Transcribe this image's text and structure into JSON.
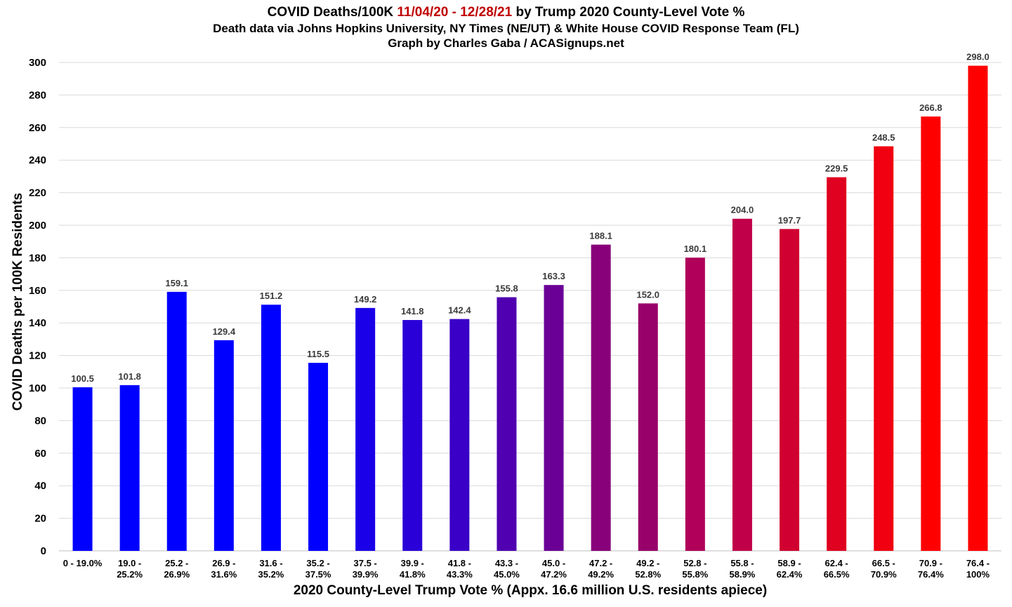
{
  "title": {
    "line1_prefix": "COVID Deaths/100K ",
    "line1_dates": "11/04/20 - 12/28/21",
    "line1_suffix": " by Trump 2020 County-Level Vote %",
    "line2": "Death data via Johns Hopkins University, NY Times (NE/UT) & White House COVID Response Team (FL)",
    "line3": "Graph by Charles Gaba / ACASignups.net"
  },
  "colors": {
    "title_dates": "#c00000",
    "gridline": "#d9d9d9",
    "bar_start": "#0000ff",
    "bar_end": "#ff0000"
  },
  "chart_data": {
    "type": "bar",
    "title": "COVID Deaths/100K 11/04/20 - 12/28/21 by Trump 2020 County-Level Vote %",
    "xlabel": "2020 County-Level Trump Vote % (Appx. 16.6 million U.S. residents apiece)",
    "ylabel": "COVID Deaths per 100K Residents",
    "ylim": [
      0,
      300
    ],
    "yticks": [
      0,
      20,
      40,
      60,
      80,
      100,
      120,
      140,
      160,
      180,
      200,
      220,
      240,
      260,
      280,
      300
    ],
    "grid": true,
    "legend": "none",
    "categories": [
      [
        "0 - 19.0%"
      ],
      [
        "19.0 -",
        "25.2%"
      ],
      [
        "25.2 -",
        "26.9%"
      ],
      [
        "26.9 -",
        "31.6%"
      ],
      [
        "31.6 -",
        "35.2%"
      ],
      [
        "35.2 -",
        "37.5%"
      ],
      [
        "37.5 -",
        "39.9%"
      ],
      [
        "39.9 -",
        "41.8%"
      ],
      [
        "41.8 -",
        "43.3%"
      ],
      [
        "43.3 -",
        "45.0%"
      ],
      [
        "45.0 -",
        "47.2%"
      ],
      [
        "47.2 -",
        "49.2%"
      ],
      [
        "49.2 -",
        "52.8%"
      ],
      [
        "52.8 -",
        "55.8%"
      ],
      [
        "55.8 -",
        "58.9%"
      ],
      [
        "58.9 -",
        "62.4%"
      ],
      [
        "62.4 -",
        "66.5%"
      ],
      [
        "66.5 -",
        "70.9%"
      ],
      [
        "70.9 -",
        "76.4%"
      ],
      [
        "76.4 -",
        "100%"
      ]
    ],
    "values": [
      100.5,
      101.8,
      159.1,
      129.4,
      151.2,
      115.5,
      149.2,
      141.8,
      142.4,
      155.8,
      163.3,
      188.1,
      152.0,
      180.1,
      204.0,
      197.7,
      229.5,
      248.5,
      266.8,
      298.0
    ],
    "data_labels": [
      "100.5",
      "101.8",
      "159.1",
      "129.4",
      "151.2",
      "115.5",
      "149.2",
      "141.8",
      "142.4",
      "155.8",
      "163.3",
      "188.1",
      "152.0",
      "180.1",
      "204.0",
      "197.7",
      "229.5",
      "248.5",
      "266.8",
      "298.0"
    ],
    "bar_colors": [
      "#0000ff",
      "#0000ff",
      "#0000ff",
      "#0000ff",
      "#0000ff",
      "#0000ff",
      "#1a00e8",
      "#2a00d8",
      "#3a00c8",
      "#5000b0",
      "#6a0096",
      "#88007a",
      "#98006a",
      "#b0005a",
      "#c00048",
      "#d00030",
      "#e00020",
      "#f00010",
      "#ff0000",
      "#ff0000"
    ]
  }
}
